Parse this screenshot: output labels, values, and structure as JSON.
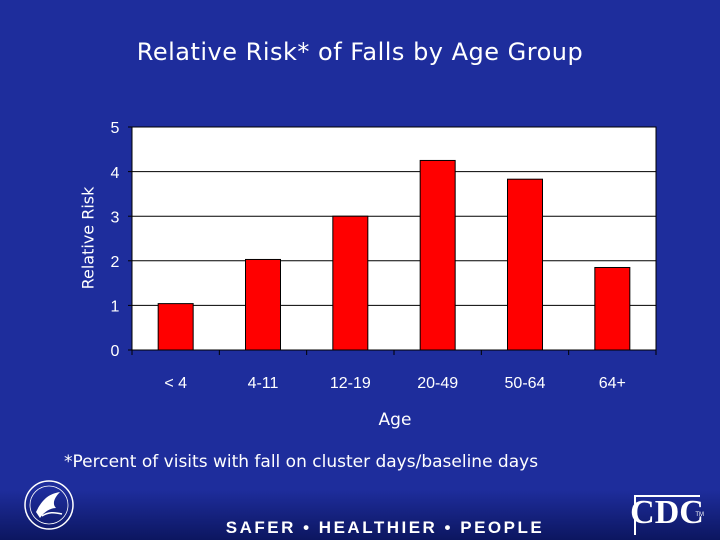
{
  "slide": {
    "footnote": "*Percent of visits with fall on cluster days/baseline days",
    "tagline": "SAFER • HEALTHIER • PEOPLE",
    "logo_right": "CDC",
    "logo_right_tm": "TM",
    "logo_left": "hhs-eagle-seal"
  },
  "colors": {
    "background": "#1e2d9c",
    "bar": "#ff0000",
    "text": "#ffffff",
    "plot_background": "#ffffff"
  },
  "chart_data": {
    "type": "bar",
    "title": "Relative Risk* of Falls by Age Group",
    "xlabel": "Age",
    "ylabel": "Relative Risk",
    "categories": [
      "< 4",
      "4-11",
      "12-19",
      "20-49",
      "50-64",
      "64+"
    ],
    "values": [
      1.04,
      2.03,
      3.0,
      4.25,
      3.83,
      1.85
    ],
    "data_labels": [
      "1.04",
      "2.03",
      "3.00",
      "4.25",
      "3.83",
      "1.85"
    ],
    "ylim": [
      0,
      5
    ],
    "yticks": [
      "0",
      "1",
      "2",
      "3",
      "4",
      "5"
    ],
    "grid": true,
    "legend": "none"
  }
}
